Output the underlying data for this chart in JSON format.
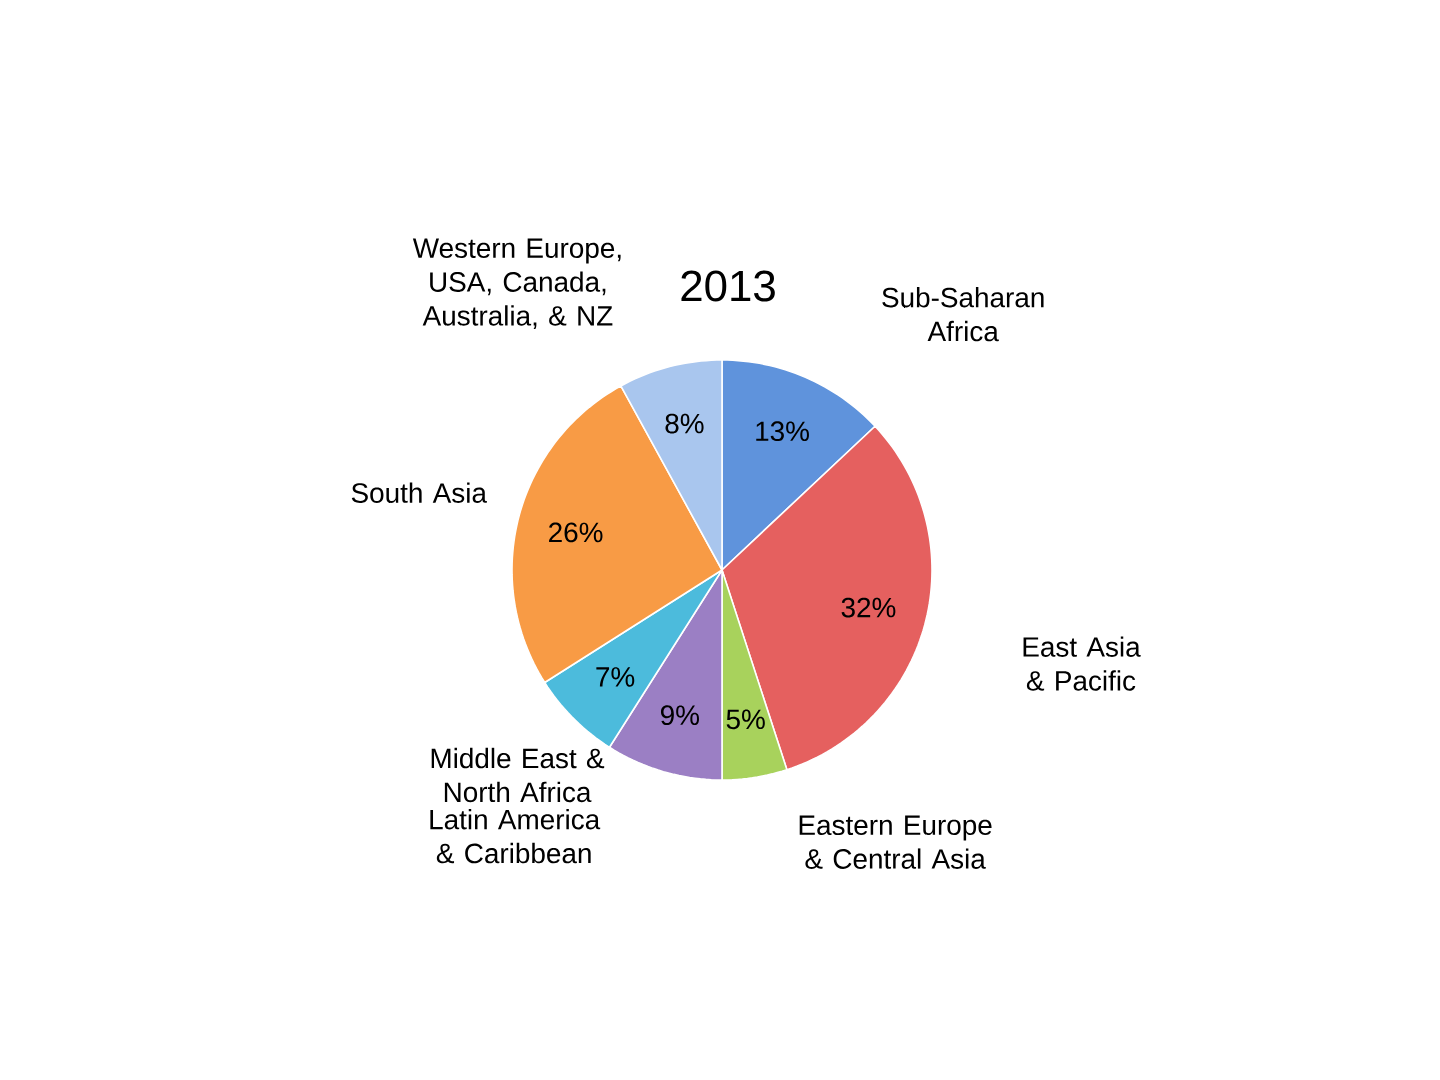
{
  "chart_data": {
    "type": "pie",
    "title": "2013",
    "categories": [
      "Sub-Saharan Africa",
      "East Asia & Pacific",
      "Eastern Europe & Central Asia",
      "Latin America & Caribbean",
      "Middle East & North Africa",
      "South Asia",
      "Western Europe, USA, Canada, Australia, & NZ"
    ],
    "values": [
      13,
      32,
      5,
      9,
      7,
      26,
      8
    ],
    "value_labels": [
      "13%",
      "32%",
      "5%",
      "9%",
      "7%",
      "26%",
      "8%"
    ],
    "colors": [
      "#5f93dc",
      "#e5605f",
      "#a8d25c",
      "#9b7fc4",
      "#4cbbdc",
      "#f89b45",
      "#a9c6ee"
    ]
  }
}
